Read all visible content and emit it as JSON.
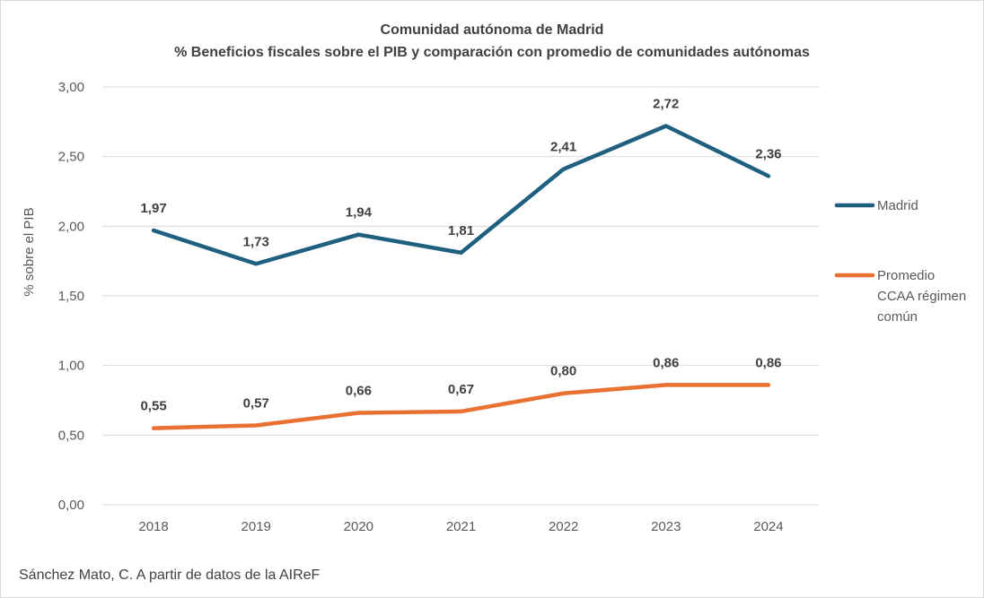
{
  "chart_data": {
    "type": "line",
    "title": "Comunidad autónoma de Madrid",
    "subtitle": "% Beneficios fiscales sobre el PIB y comparación con promedio de comunidades autónomas",
    "xlabel": "",
    "ylabel": "% sobre el PIB",
    "categories": [
      "2018",
      "2019",
      "2020",
      "2021",
      "2022",
      "2023",
      "2024"
    ],
    "ylim": [
      0,
      3
    ],
    "yticks": [
      "0,00",
      "0,50",
      "1,00",
      "1,50",
      "2,00",
      "2,50",
      "3,00"
    ],
    "grid": true,
    "legend_position": "right",
    "series": [
      {
        "name": "Madrid",
        "legend_lines": [
          "Madrid"
        ],
        "color": "#1f5f7f",
        "values": [
          1.97,
          1.73,
          1.94,
          1.81,
          2.41,
          2.72,
          2.36
        ],
        "labels": [
          "1,97",
          "1,73",
          "1,94",
          "1,81",
          "2,41",
          "2,72",
          "2,36"
        ]
      },
      {
        "name": "Promedio CCAA régimen común",
        "legend_lines": [
          "Promedio",
          "CCAA régimen",
          "común"
        ],
        "color": "#e97132",
        "values": [
          0.55,
          0.57,
          0.66,
          0.67,
          0.8,
          0.86,
          0.86
        ],
        "labels": [
          "0,55",
          "0,57",
          "0,66",
          "0,67",
          "0,80",
          "0,86",
          "0,86"
        ]
      }
    ],
    "source": "Sánchez Mato, C.  A partir de datos de la AIReF"
  }
}
